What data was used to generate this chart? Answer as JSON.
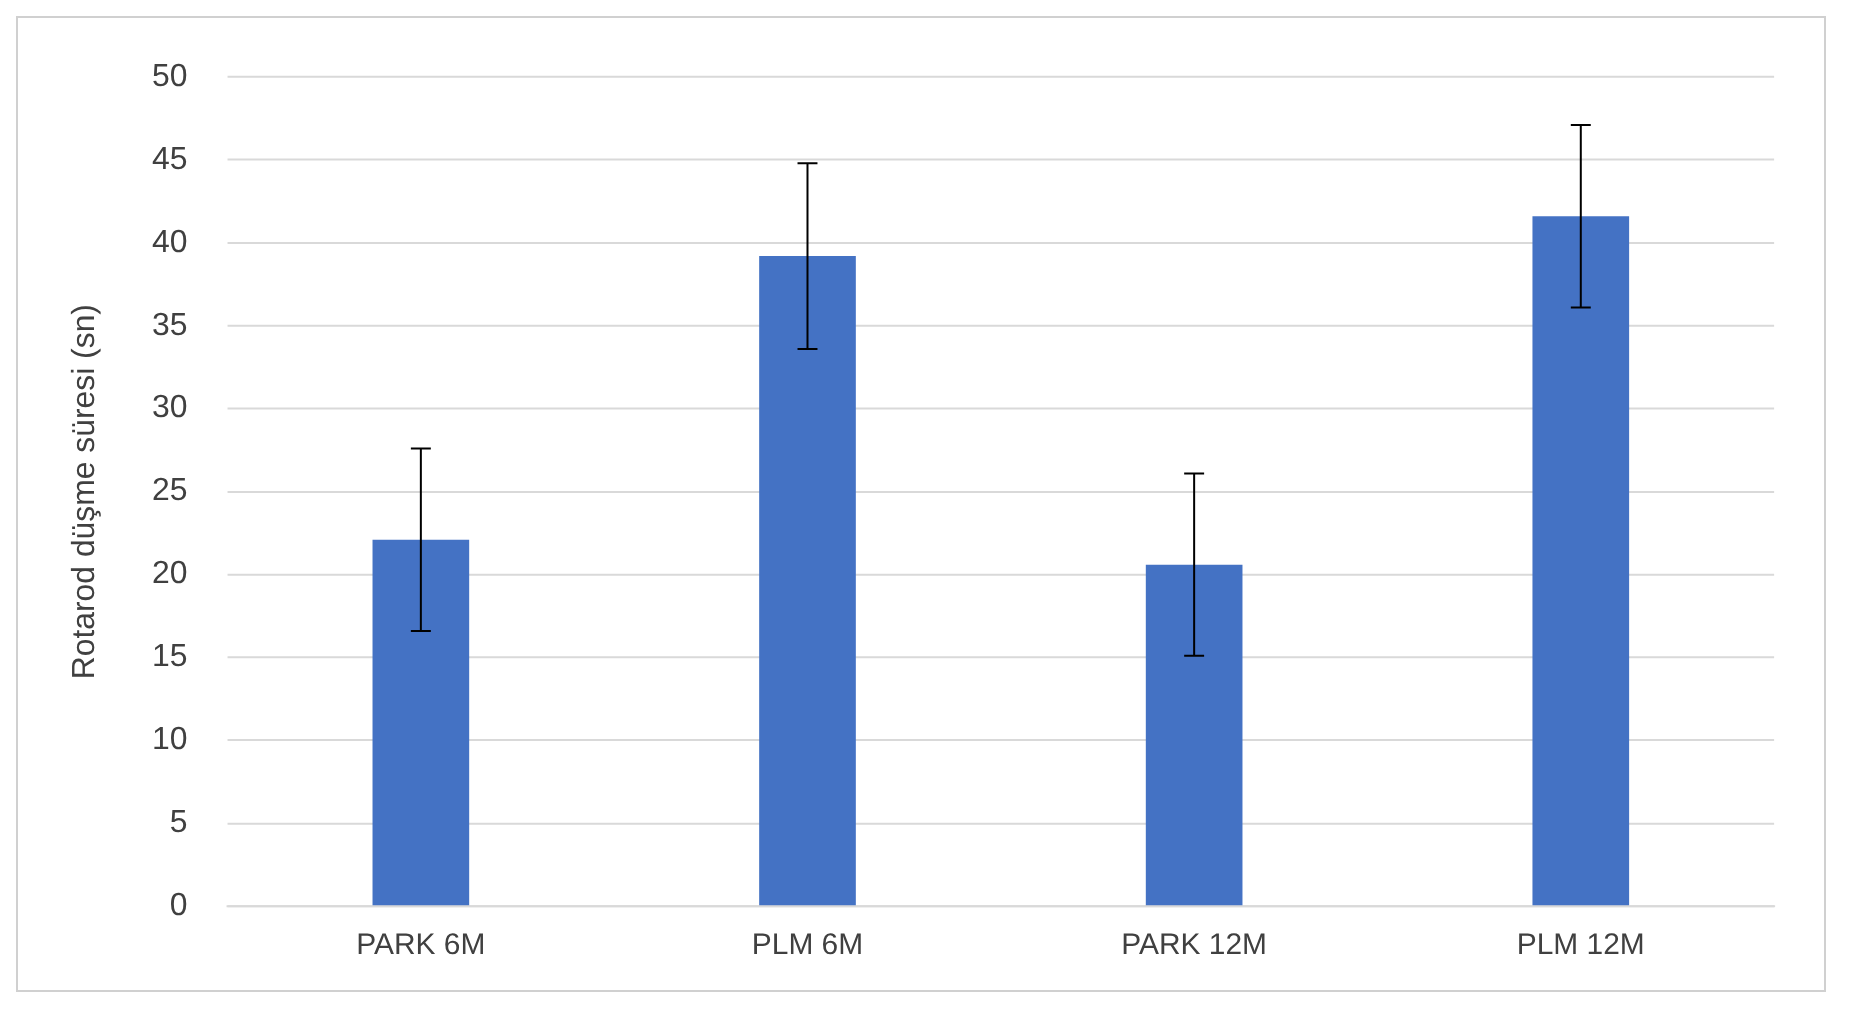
{
  "chart_data": {
    "type": "bar",
    "ylabel": "Rotarod düşme süresi (sn)",
    "categories": [
      "PARK 6M",
      "PLM 6M",
      "PARK 12M",
      "PLM 12M"
    ],
    "values": [
      22.1,
      39.2,
      20.6,
      41.6
    ],
    "errors": [
      5.5,
      5.6,
      5.5,
      5.5
    ],
    "color": "#4472c4",
    "ylim": [
      0,
      50
    ],
    "yticks": [
      0,
      5,
      10,
      15,
      20,
      25,
      30,
      35,
      40,
      45,
      50
    ],
    "grid": "y"
  }
}
